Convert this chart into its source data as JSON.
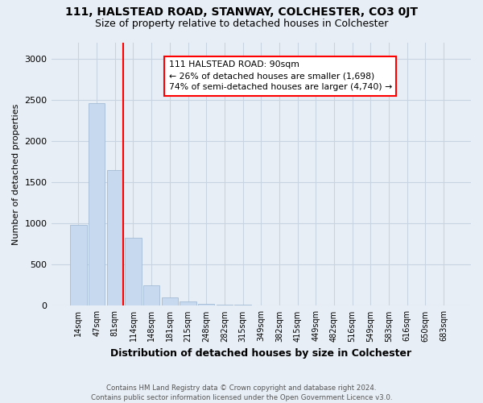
{
  "title1": "111, HALSTEAD ROAD, STANWAY, COLCHESTER, CO3 0JT",
  "title2": "Size of property relative to detached houses in Colchester",
  "xlabel": "Distribution of detached houses by size in Colchester",
  "ylabel": "Number of detached properties",
  "footnote": "Contains HM Land Registry data © Crown copyright and database right 2024.\nContains public sector information licensed under the Open Government Licence v3.0.",
  "bar_labels": [
    "14sqm",
    "47sqm",
    "81sqm",
    "114sqm",
    "148sqm",
    "181sqm",
    "215sqm",
    "248sqm",
    "282sqm",
    "315sqm",
    "349sqm",
    "382sqm",
    "415sqm",
    "449sqm",
    "482sqm",
    "516sqm",
    "549sqm",
    "583sqm",
    "616sqm",
    "650sqm",
    "683sqm"
  ],
  "bar_values": [
    980,
    2460,
    1650,
    830,
    250,
    100,
    50,
    20,
    15,
    10,
    5,
    4,
    3,
    2,
    1,
    1,
    1,
    0,
    0,
    0,
    0
  ],
  "bar_color": "#c6d9ee",
  "bar_edge_color": "#9ab5d0",
  "annotation_text": "111 HALSTEAD ROAD: 90sqm\n← 26% of detached houses are smaller (1,698)\n74% of semi-detached houses are larger (4,740) →",
  "annotation_box_color": "white",
  "annotation_box_edge_color": "red",
  "vline_x": 2.43,
  "vline_color": "red",
  "background_color": "#e8eef5",
  "ylim": [
    0,
    3200
  ],
  "yticks": [
    0,
    500,
    1000,
    1500,
    2000,
    2500,
    3000
  ],
  "grid_color": "#c8d4e2",
  "title_fontsize": 10,
  "subtitle_fontsize": 9
}
